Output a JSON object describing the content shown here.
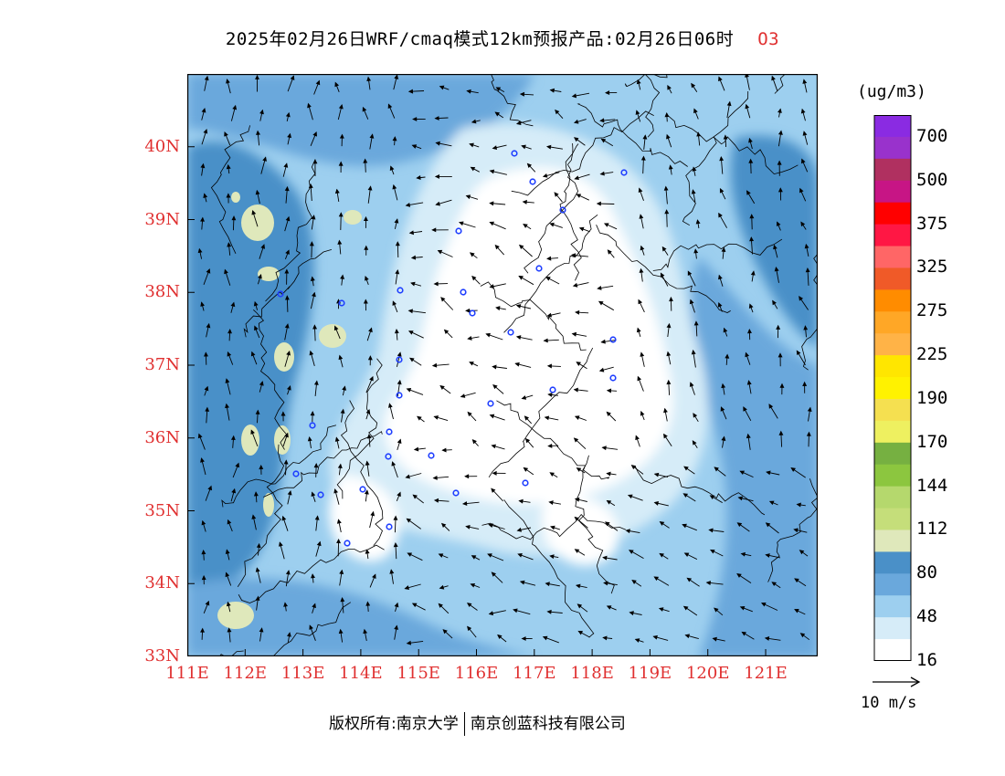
{
  "title": {
    "main": "2025年02月26日WRF/cmaq模式12km预报产品:02月26日06时",
    "pollutant": "O3"
  },
  "axes": {
    "lat_labels": [
      "40N",
      "39N",
      "38N",
      "37N",
      "36N",
      "35N",
      "34N",
      "33N"
    ],
    "lon_labels": [
      "111E",
      "112E",
      "113E",
      "114E",
      "115E",
      "116E",
      "117E",
      "118E",
      "119E",
      "120E",
      "121E"
    ],
    "lat_range": [
      33,
      41
    ],
    "lon_range": [
      111,
      121.9
    ]
  },
  "colorbar": {
    "unit": "(ug/m3)",
    "labels": [
      "700",
      "500",
      "375",
      "325",
      "275",
      "225",
      "190",
      "170",
      "144",
      "112",
      "80",
      "48",
      "16"
    ],
    "colors": [
      "#8a2be2",
      "#9932cc",
      "#b03060",
      "#c71585",
      "#ff0000",
      "#ff1744",
      "#ff6666",
      "#f05a28",
      "#ff8c00",
      "#ffa726",
      "#ffb347",
      "#ffe600",
      "#fff200",
      "#f5e050",
      "#eef060",
      "#76b041",
      "#8cc63f",
      "#b5d86d",
      "#c5de7a",
      "#dfe8bb",
      "#4a90c8",
      "#6aa8dc",
      "#9dcfef",
      "#d6ecf8",
      "#ffffff"
    ]
  },
  "wind_reference": {
    "label": "10 m/s"
  },
  "footer": {
    "left": "版权所有:南京大学",
    "right": "南京创蓝科技有限公司"
  },
  "palette": {
    "white": "#ffffff",
    "very_light_blue": "#d6ecf8",
    "light_blue": "#9dcfef",
    "mid_blue": "#6aa8dc",
    "dark_blue": "#4a90c8",
    "pale_yellow": "#dfe8bb",
    "axis_red": "#e03030",
    "site_marker": "#1f3fff"
  }
}
